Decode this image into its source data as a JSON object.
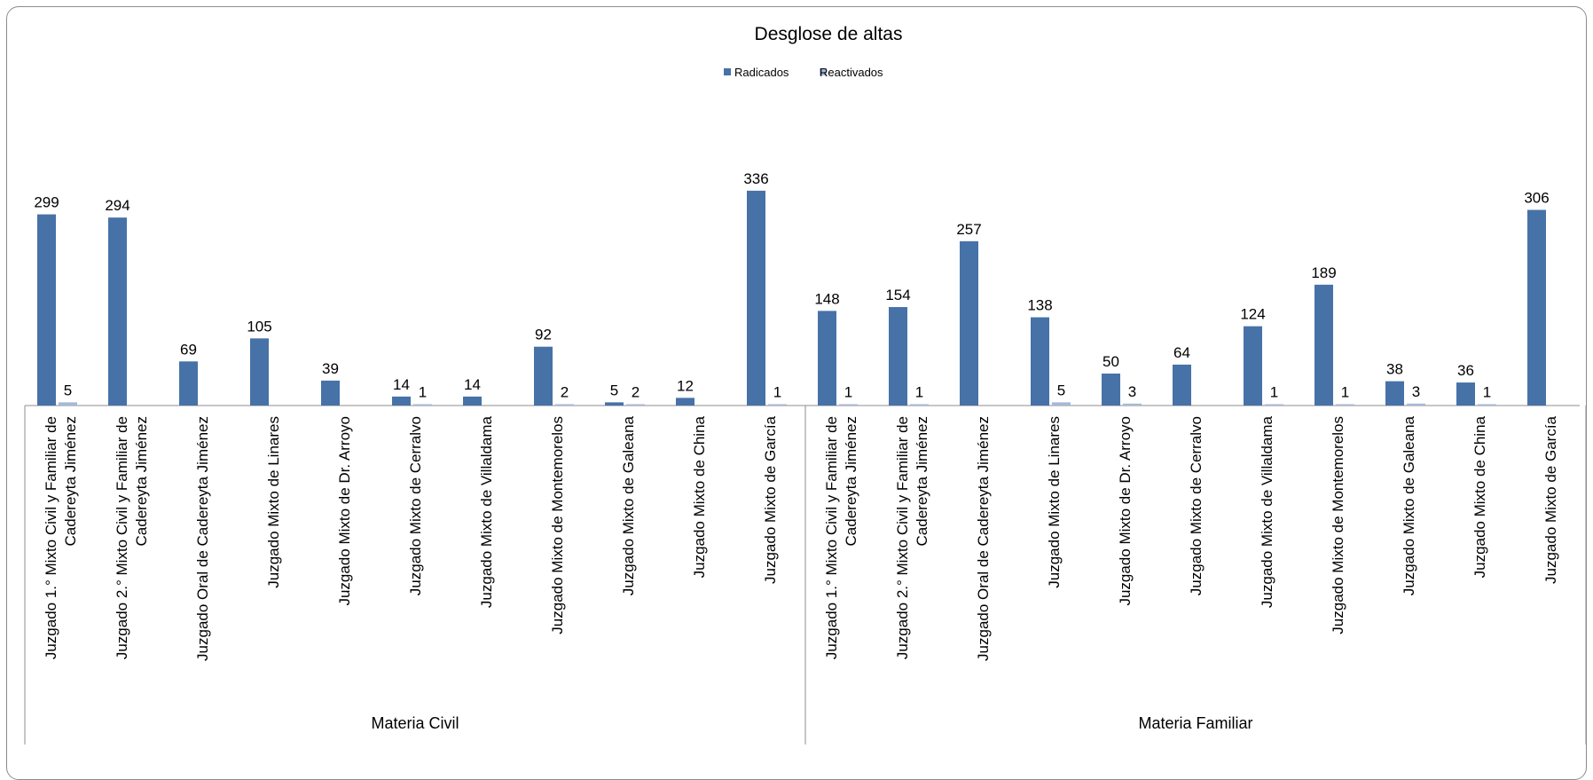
{
  "chart_data": {
    "type": "bar",
    "title": "Desglose de altas",
    "legend_position": "top",
    "xlabel": "",
    "ylabel": "",
    "ylim": [
      0,
      390
    ],
    "grid": false,
    "groups": [
      {
        "name": "Materia Civil",
        "categories": [
          [
            "Juzgado 1.° Mixto Civil y Familiar de",
            "Cadereyta Jiménez"
          ],
          [
            "Juzgado 2.° Mixto Civil y Familiar de",
            "Cadereyta Jiménez"
          ],
          [
            "Juzgado Oral de Cadereyta Jiménez"
          ],
          [
            "Juzgado Mixto de Linares"
          ],
          [
            "Juzgado Mixto de Dr. Arroyo"
          ],
          [
            "Juzgado Mixto de Cerralvo"
          ],
          [
            "Juzgado Mixto de Villaldama"
          ],
          [
            "Juzgado Mixto de Montemorelos"
          ],
          [
            "Juzgado Mixto de Galeana"
          ],
          [
            "Juzgado Mixto de China"
          ],
          [
            "Juzgado Mixto de García"
          ]
        ]
      },
      {
        "name": "Materia Familiar",
        "categories": [
          [
            "Juzgado 1.° Mixto Civil y Familiar de",
            "Cadereyta Jiménez"
          ],
          [
            "Juzgado 2.° Mixto Civil y Familiar de",
            "Cadereyta Jiménez"
          ],
          [
            "Juzgado Oral de Cadereyta Jiménez"
          ],
          [
            "Juzgado Mixto de Linares"
          ],
          [
            "Juzgado Mixto de Dr. Arroyo"
          ],
          [
            "Juzgado Mixto de Cerralvo"
          ],
          [
            "Juzgado Mixto de Villaldama"
          ],
          [
            "Juzgado Mixto de Montemorelos"
          ],
          [
            "Juzgado Mixto de Galeana"
          ],
          [
            "Juzgado Mixto de China"
          ],
          [
            "Juzgado Mixto de García"
          ]
        ]
      }
    ],
    "series": [
      {
        "name": "Radicados",
        "color": "#4672A8",
        "values": [
          299,
          294,
          69,
          105,
          39,
          14,
          14,
          92,
          5,
          12,
          336,
          148,
          154,
          257,
          138,
          50,
          64,
          124,
          189,
          38,
          36,
          306
        ]
      },
      {
        "name": "Reactivados",
        "color": "#A5B8D7",
        "values": [
          5,
          null,
          null,
          null,
          null,
          1,
          null,
          2,
          2,
          null,
          1,
          1,
          1,
          null,
          5,
          3,
          null,
          1,
          1,
          3,
          1,
          null
        ]
      }
    ]
  }
}
